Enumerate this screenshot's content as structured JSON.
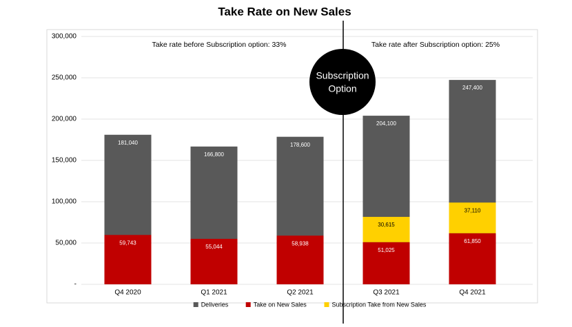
{
  "chart_data": {
    "type": "bar",
    "title": "Take Rate on New Sales",
    "categories": [
      "Q4 2020",
      "Q1 2021",
      "Q2 2021",
      "Q3 2021",
      "Q4 2021"
    ],
    "series": [
      {
        "name": "Deliveries",
        "color": "#595959",
        "values": [
          181040,
          166800,
          178600,
          204100,
          247400
        ],
        "value_labels": [
          "181,040",
          "166,800",
          "178,600",
          "204,100",
          "247,400"
        ]
      },
      {
        "name": "Take on New Sales",
        "color": "#c00000",
        "values": [
          59743,
          55044,
          58938,
          51025,
          61850
        ],
        "value_labels": [
          "59,743",
          "55,044",
          "58,938",
          "51,025",
          "61,850"
        ]
      },
      {
        "name": "Subscription Take from New Sales",
        "color": "#ffd000",
        "values": [
          null,
          null,
          null,
          30615,
          37110
        ],
        "value_labels": [
          null,
          null,
          null,
          "30,615",
          "37,110"
        ]
      }
    ],
    "ylim": [
      0,
      300000
    ],
    "yticks": [
      {
        "value": 0,
        "label": "-"
      },
      {
        "value": 50000,
        "label": "50,000"
      },
      {
        "value": 100000,
        "label": "100,000"
      },
      {
        "value": 150000,
        "label": "150,000"
      },
      {
        "value": 200000,
        "label": "200,000"
      },
      {
        "value": 250000,
        "label": "250,000"
      },
      {
        "value": 300000,
        "label": "300,000"
      }
    ],
    "grid": true,
    "annotations": {
      "before": "Take rate before Subscription option: 33%",
      "after": "Take rate after Subscription option: 25%",
      "divider_label": [
        "Subscription",
        "Option"
      ]
    }
  }
}
